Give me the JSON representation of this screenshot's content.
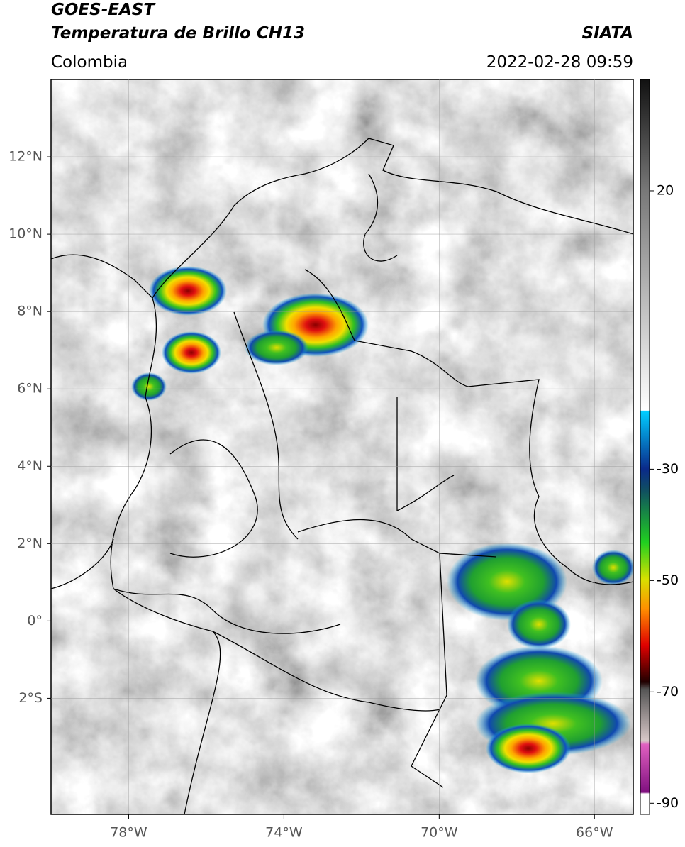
{
  "header": {
    "title": "GOES-EAST",
    "subtitle": "Temperatura de Brillo CH13",
    "source": "SIATA",
    "region": "Colombia",
    "timestamp": "2022-02-28 09:59"
  },
  "map": {
    "latlim": [
      -5,
      14
    ],
    "lonlim": [
      -80,
      -65
    ],
    "lat_ticks": [
      {
        "value": 12,
        "label": "12°N"
      },
      {
        "value": 10,
        "label": "10°N"
      },
      {
        "value": 8,
        "label": "8°N"
      },
      {
        "value": 6,
        "label": "6°N"
      },
      {
        "value": 4,
        "label": "4°N"
      },
      {
        "value": 2,
        "label": "2°N"
      },
      {
        "value": 0,
        "label": "0°"
      },
      {
        "value": -2,
        "label": "2°S"
      }
    ],
    "lon_ticks": [
      {
        "value": -78,
        "label": "78°W"
      },
      {
        "value": -74,
        "label": "74°W"
      },
      {
        "value": -70,
        "label": "70°W"
      },
      {
        "value": -66,
        "label": "66°W"
      }
    ]
  },
  "colorbar": {
    "range": [
      -92,
      40
    ],
    "ticks": [
      20,
      -30,
      -50,
      -70,
      -90
    ]
  }
}
